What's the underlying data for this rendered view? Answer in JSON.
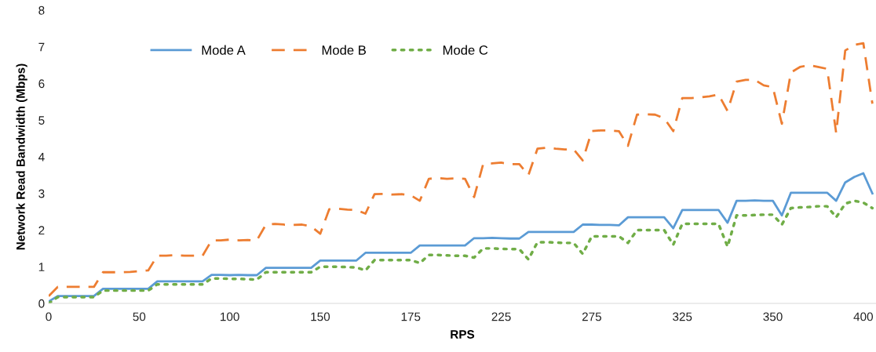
{
  "chart_data": {
    "type": "line",
    "xlabel": "RPS",
    "ylabel": "Network Read Bandwidth (Mbps)",
    "ylim": [
      0,
      8
    ],
    "yticks": [
      0,
      1,
      2,
      3,
      4,
      5,
      6,
      7,
      8
    ],
    "categories": [
      "0",
      null,
      null,
      null,
      null,
      null,
      null,
      null,
      null,
      null,
      "50",
      null,
      null,
      null,
      null,
      null,
      null,
      null,
      null,
      null,
      "100",
      null,
      null,
      null,
      null,
      null,
      null,
      null,
      null,
      null,
      "150",
      null,
      null,
      null,
      null,
      null,
      null,
      null,
      null,
      null,
      "175",
      null,
      null,
      null,
      null,
      null,
      null,
      null,
      null,
      null,
      "225",
      null,
      null,
      null,
      null,
      null,
      null,
      null,
      null,
      null,
      "275",
      null,
      null,
      null,
      null,
      null,
      null,
      null,
      null,
      null,
      "325",
      null,
      null,
      null,
      null,
      null,
      null,
      null,
      null,
      null,
      "350",
      null,
      null,
      null,
      null,
      null,
      null,
      null,
      null,
      null,
      "400",
      null
    ],
    "grid": false,
    "legend": "top left",
    "marker": "none",
    "series": [
      {
        "name": "Mode A",
        "color": "#5b9bd5",
        "line_style": "solid",
        "values": [
          0.05,
          0.2,
          0.2,
          0.2,
          0.2,
          0.2,
          0.4,
          0.4,
          0.4,
          0.4,
          0.4,
          0.4,
          0.6,
          0.6,
          0.6,
          0.6,
          0.6,
          0.6,
          0.78,
          0.78,
          0.77,
          0.78,
          0.77,
          0.77,
          0.97,
          0.97,
          0.97,
          0.97,
          0.97,
          0.97,
          1.17,
          1.17,
          1.17,
          1.17,
          1.17,
          1.38,
          1.38,
          1.38,
          1.38,
          1.38,
          1.38,
          1.58,
          1.58,
          1.58,
          1.58,
          1.58,
          1.58,
          1.78,
          1.78,
          1.79,
          1.78,
          1.77,
          1.77,
          1.95,
          1.95,
          1.95,
          1.95,
          1.95,
          1.95,
          2.15,
          2.15,
          2.14,
          2.14,
          2.13,
          2.35,
          2.35,
          2.35,
          2.35,
          2.35,
          2.05,
          2.55,
          2.55,
          2.55,
          2.55,
          2.55,
          2.2,
          2.8,
          2.8,
          2.81,
          2.8,
          2.8,
          2.4,
          3.02,
          3.02,
          3.02,
          3.02,
          3.02,
          2.8,
          3.3,
          3.45,
          3.55,
          3.0
        ]
      },
      {
        "name": "Mode B",
        "color": "#ed7d31",
        "line_style": "dashed",
        "values": [
          0.2,
          0.45,
          0.45,
          0.45,
          0.45,
          0.45,
          0.85,
          0.85,
          0.85,
          0.86,
          0.88,
          0.9,
          1.3,
          1.3,
          1.32,
          1.3,
          1.3,
          1.3,
          1.72,
          1.72,
          1.74,
          1.72,
          1.73,
          1.72,
          2.15,
          2.17,
          2.15,
          2.14,
          2.15,
          2.1,
          1.9,
          2.57,
          2.58,
          2.56,
          2.55,
          2.45,
          2.98,
          2.99,
          2.97,
          2.98,
          2.95,
          2.8,
          3.4,
          3.42,
          3.4,
          3.41,
          3.4,
          2.9,
          3.8,
          3.82,
          3.84,
          3.8,
          3.8,
          3.5,
          4.22,
          4.25,
          4.22,
          4.2,
          4.2,
          3.9,
          4.7,
          4.72,
          4.72,
          4.7,
          4.3,
          5.15,
          5.16,
          5.15,
          5.05,
          4.7,
          5.6,
          5.6,
          5.62,
          5.65,
          5.7,
          5.25,
          6.05,
          6.1,
          6.1,
          5.95,
          5.9,
          4.9,
          6.3,
          6.45,
          6.5,
          6.45,
          6.4,
          4.65,
          6.9,
          7.05,
          7.1,
          5.45
        ]
      },
      {
        "name": "Mode C",
        "color": "#70ad47",
        "line_style": "dotted",
        "values": [
          0.0,
          0.17,
          0.17,
          0.17,
          0.17,
          0.17,
          0.35,
          0.35,
          0.35,
          0.35,
          0.35,
          0.35,
          0.52,
          0.52,
          0.52,
          0.52,
          0.52,
          0.52,
          0.68,
          0.68,
          0.67,
          0.67,
          0.66,
          0.65,
          0.85,
          0.85,
          0.85,
          0.85,
          0.85,
          0.85,
          1.0,
          1.0,
          1.0,
          0.99,
          0.98,
          0.9,
          1.18,
          1.18,
          1.18,
          1.18,
          1.18,
          1.1,
          1.32,
          1.32,
          1.31,
          1.3,
          1.3,
          1.25,
          1.5,
          1.5,
          1.49,
          1.48,
          1.48,
          1.2,
          1.67,
          1.67,
          1.66,
          1.65,
          1.65,
          1.35,
          1.83,
          1.83,
          1.83,
          1.83,
          1.65,
          2.0,
          2.0,
          2.0,
          2.0,
          1.6,
          2.17,
          2.17,
          2.17,
          2.17,
          2.17,
          1.55,
          2.4,
          2.4,
          2.41,
          2.42,
          2.42,
          2.15,
          2.6,
          2.62,
          2.63,
          2.65,
          2.65,
          2.35,
          2.72,
          2.8,
          2.75,
          2.6
        ]
      }
    ]
  }
}
